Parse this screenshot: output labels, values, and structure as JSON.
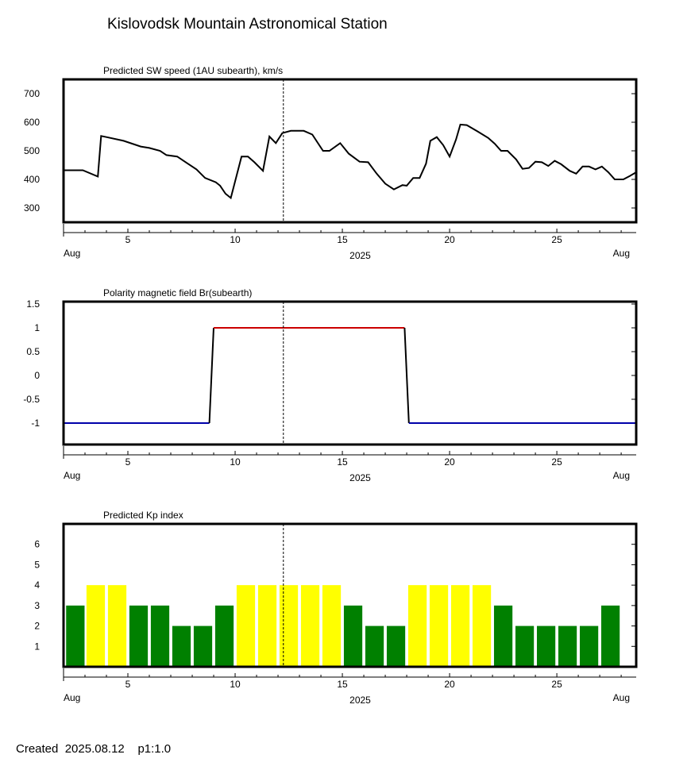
{
  "page": {
    "title": "Kislovodsk Mountain Astronomical Station",
    "footer": "Created  2025.08.12    p1:1.0"
  },
  "colors": {
    "line": "#000000",
    "polarity_positive": "#cc0000",
    "polarity_negative": "#0000aa",
    "kp_high": "#ffff00",
    "kp_low": "#008000"
  },
  "chart_data": [
    {
      "type": "line",
      "title": "Predicted SW speed (1AU subearth), km/s",
      "x_axis": {
        "range": [
          2.0,
          28.7
        ],
        "ticks": [
          5,
          10,
          15,
          20,
          25
        ],
        "tick_labels": [
          "5",
          "10",
          "15",
          "20",
          "25"
        ],
        "left_label": "Aug",
        "right_label": "Aug",
        "center_label": "2025"
      },
      "y_axis": {
        "range": [
          250,
          750
        ],
        "ticks": [
          300,
          400,
          500,
          600,
          700
        ],
        "tick_labels": [
          "300",
          "400",
          "500",
          "600",
          "700"
        ]
      },
      "marker_date": 12.25,
      "series": [
        {
          "x": [
            2.0,
            2.3,
            2.9,
            3.6,
            3.75,
            4.0,
            4.8,
            5.6,
            6.0,
            6.5,
            6.8,
            7.3,
            7.7,
            8.2,
            8.6,
            9.1,
            9.3,
            9.55,
            9.8,
            10.3,
            10.6,
            10.9,
            11.3,
            11.6,
            11.9,
            12.2,
            12.6,
            13.2,
            13.6,
            14.1,
            14.4,
            14.9,
            15.3,
            15.8,
            16.2,
            16.6,
            17.0,
            17.4,
            17.8,
            18.0,
            18.3,
            18.6,
            18.9,
            19.1,
            19.4,
            19.7,
            20.0,
            20.3,
            20.5,
            20.8,
            21.3,
            21.8,
            22.1,
            22.4,
            22.7,
            23.1,
            23.4,
            23.7,
            24.0,
            24.3,
            24.6,
            24.9,
            25.2,
            25.6,
            25.9,
            26.2,
            26.5,
            26.8,
            27.1,
            27.4,
            27.7,
            28.1,
            28.4,
            28.7
          ],
          "y": [
            432,
            432,
            432,
            410,
            552,
            548,
            535,
            515,
            510,
            500,
            485,
            480,
            460,
            435,
            405,
            390,
            378,
            350,
            335,
            480,
            480,
            460,
            430,
            550,
            527,
            562,
            570,
            570,
            557,
            500,
            500,
            527,
            490,
            462,
            460,
            420,
            385,
            365,
            380,
            378,
            405,
            405,
            455,
            535,
            548,
            520,
            480,
            540,
            592,
            590,
            568,
            545,
            525,
            500,
            500,
            470,
            437,
            440,
            462,
            460,
            447,
            465,
            453,
            430,
            420,
            445,
            445,
            435,
            445,
            425,
            400,
            400,
            412,
            425
          ]
        }
      ]
    },
    {
      "type": "line",
      "title": "Polarity magnetic field  Br(subearth)",
      "x_axis": {
        "range": [
          2.0,
          28.7
        ],
        "ticks": [
          5,
          10,
          15,
          20,
          25
        ],
        "tick_labels": [
          "5",
          "10",
          "15",
          "20",
          "25"
        ],
        "left_label": "Aug",
        "right_label": "Aug",
        "center_label": "2025"
      },
      "y_axis": {
        "range": [
          -1.45,
          1.55
        ],
        "ticks": [
          -1,
          -0.5,
          0,
          0.5,
          1,
          1.5
        ],
        "tick_labels": [
          "-1",
          "-0.5",
          "0",
          "0.5",
          "1",
          "1.5"
        ]
      },
      "marker_date": 12.25,
      "series": [
        {
          "polarity": "negative",
          "x": [
            2.0,
            8.8
          ],
          "y": [
            -1,
            -1
          ]
        },
        {
          "polarity": "transition",
          "x": [
            8.8,
            9.0
          ],
          "y": [
            -1,
            1
          ]
        },
        {
          "polarity": "positive",
          "x": [
            9.0,
            17.9
          ],
          "y": [
            1,
            1
          ]
        },
        {
          "polarity": "transition",
          "x": [
            17.9,
            18.1
          ],
          "y": [
            1,
            -1
          ]
        },
        {
          "polarity": "negative",
          "x": [
            18.1,
            28.7
          ],
          "y": [
            -1,
            -1
          ]
        }
      ]
    },
    {
      "type": "bar",
      "title": "Predicted Kp index",
      "x_axis": {
        "range": [
          2.0,
          28.7
        ],
        "ticks": [
          5,
          10,
          15,
          20,
          25
        ],
        "tick_labels": [
          "5",
          "10",
          "15",
          "20",
          "25"
        ],
        "left_label": "Aug",
        "right_label": "Aug",
        "center_label": "2025"
      },
      "y_axis": {
        "range": [
          0,
          7
        ],
        "ticks": [
          1,
          2,
          3,
          4,
          5,
          6
        ],
        "tick_labels": [
          "1",
          "2",
          "3",
          "4",
          "5",
          "6"
        ]
      },
      "marker_date": 12.25,
      "threshold_high": 4,
      "bar_x": [
        2.55,
        3.5,
        4.5,
        5.5,
        6.5,
        7.5,
        8.5,
        9.5,
        10.5,
        11.5,
        12.5,
        13.5,
        14.5,
        15.5,
        16.5,
        17.5,
        18.5,
        19.5,
        20.5,
        21.5,
        22.5,
        23.5,
        24.5,
        25.5,
        26.5,
        27.5
      ],
      "values": [
        3,
        4,
        4,
        3,
        3,
        2,
        2,
        3,
        4,
        4,
        4,
        4,
        4,
        3,
        2,
        2,
        4,
        4,
        4,
        4,
        3,
        2,
        2,
        2,
        2,
        3
      ]
    }
  ]
}
